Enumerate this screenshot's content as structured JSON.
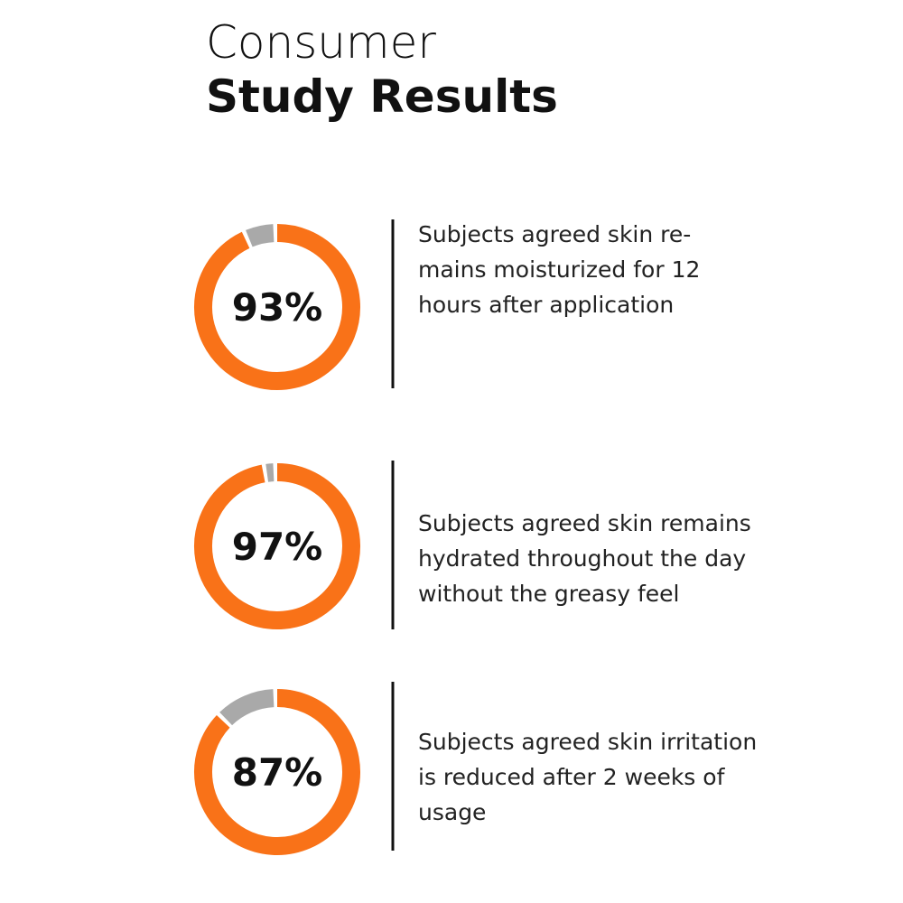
{
  "header": {
    "title_line1": "Consumer",
    "title_line2": "Study Results"
  },
  "ring_color": "#f97218",
  "track_color": "#a9a9a9",
  "stats": [
    {
      "value": 93,
      "value_label": "93%",
      "text_lines": [
        "Subjects agreed skin re-",
        "mains moisturized for 12",
        "hours after application"
      ]
    },
    {
      "value": 97,
      "value_label": "97%",
      "text_lines": [
        "Subjects agreed skin remains",
        "hydrated throughout the day",
        "without the greasy feel"
      ]
    },
    {
      "value": 87,
      "value_label": "87%",
      "text_lines": [
        "Subjects agreed skin irritation",
        "is reduced after 2 weeks of",
        "usage"
      ]
    }
  ]
}
